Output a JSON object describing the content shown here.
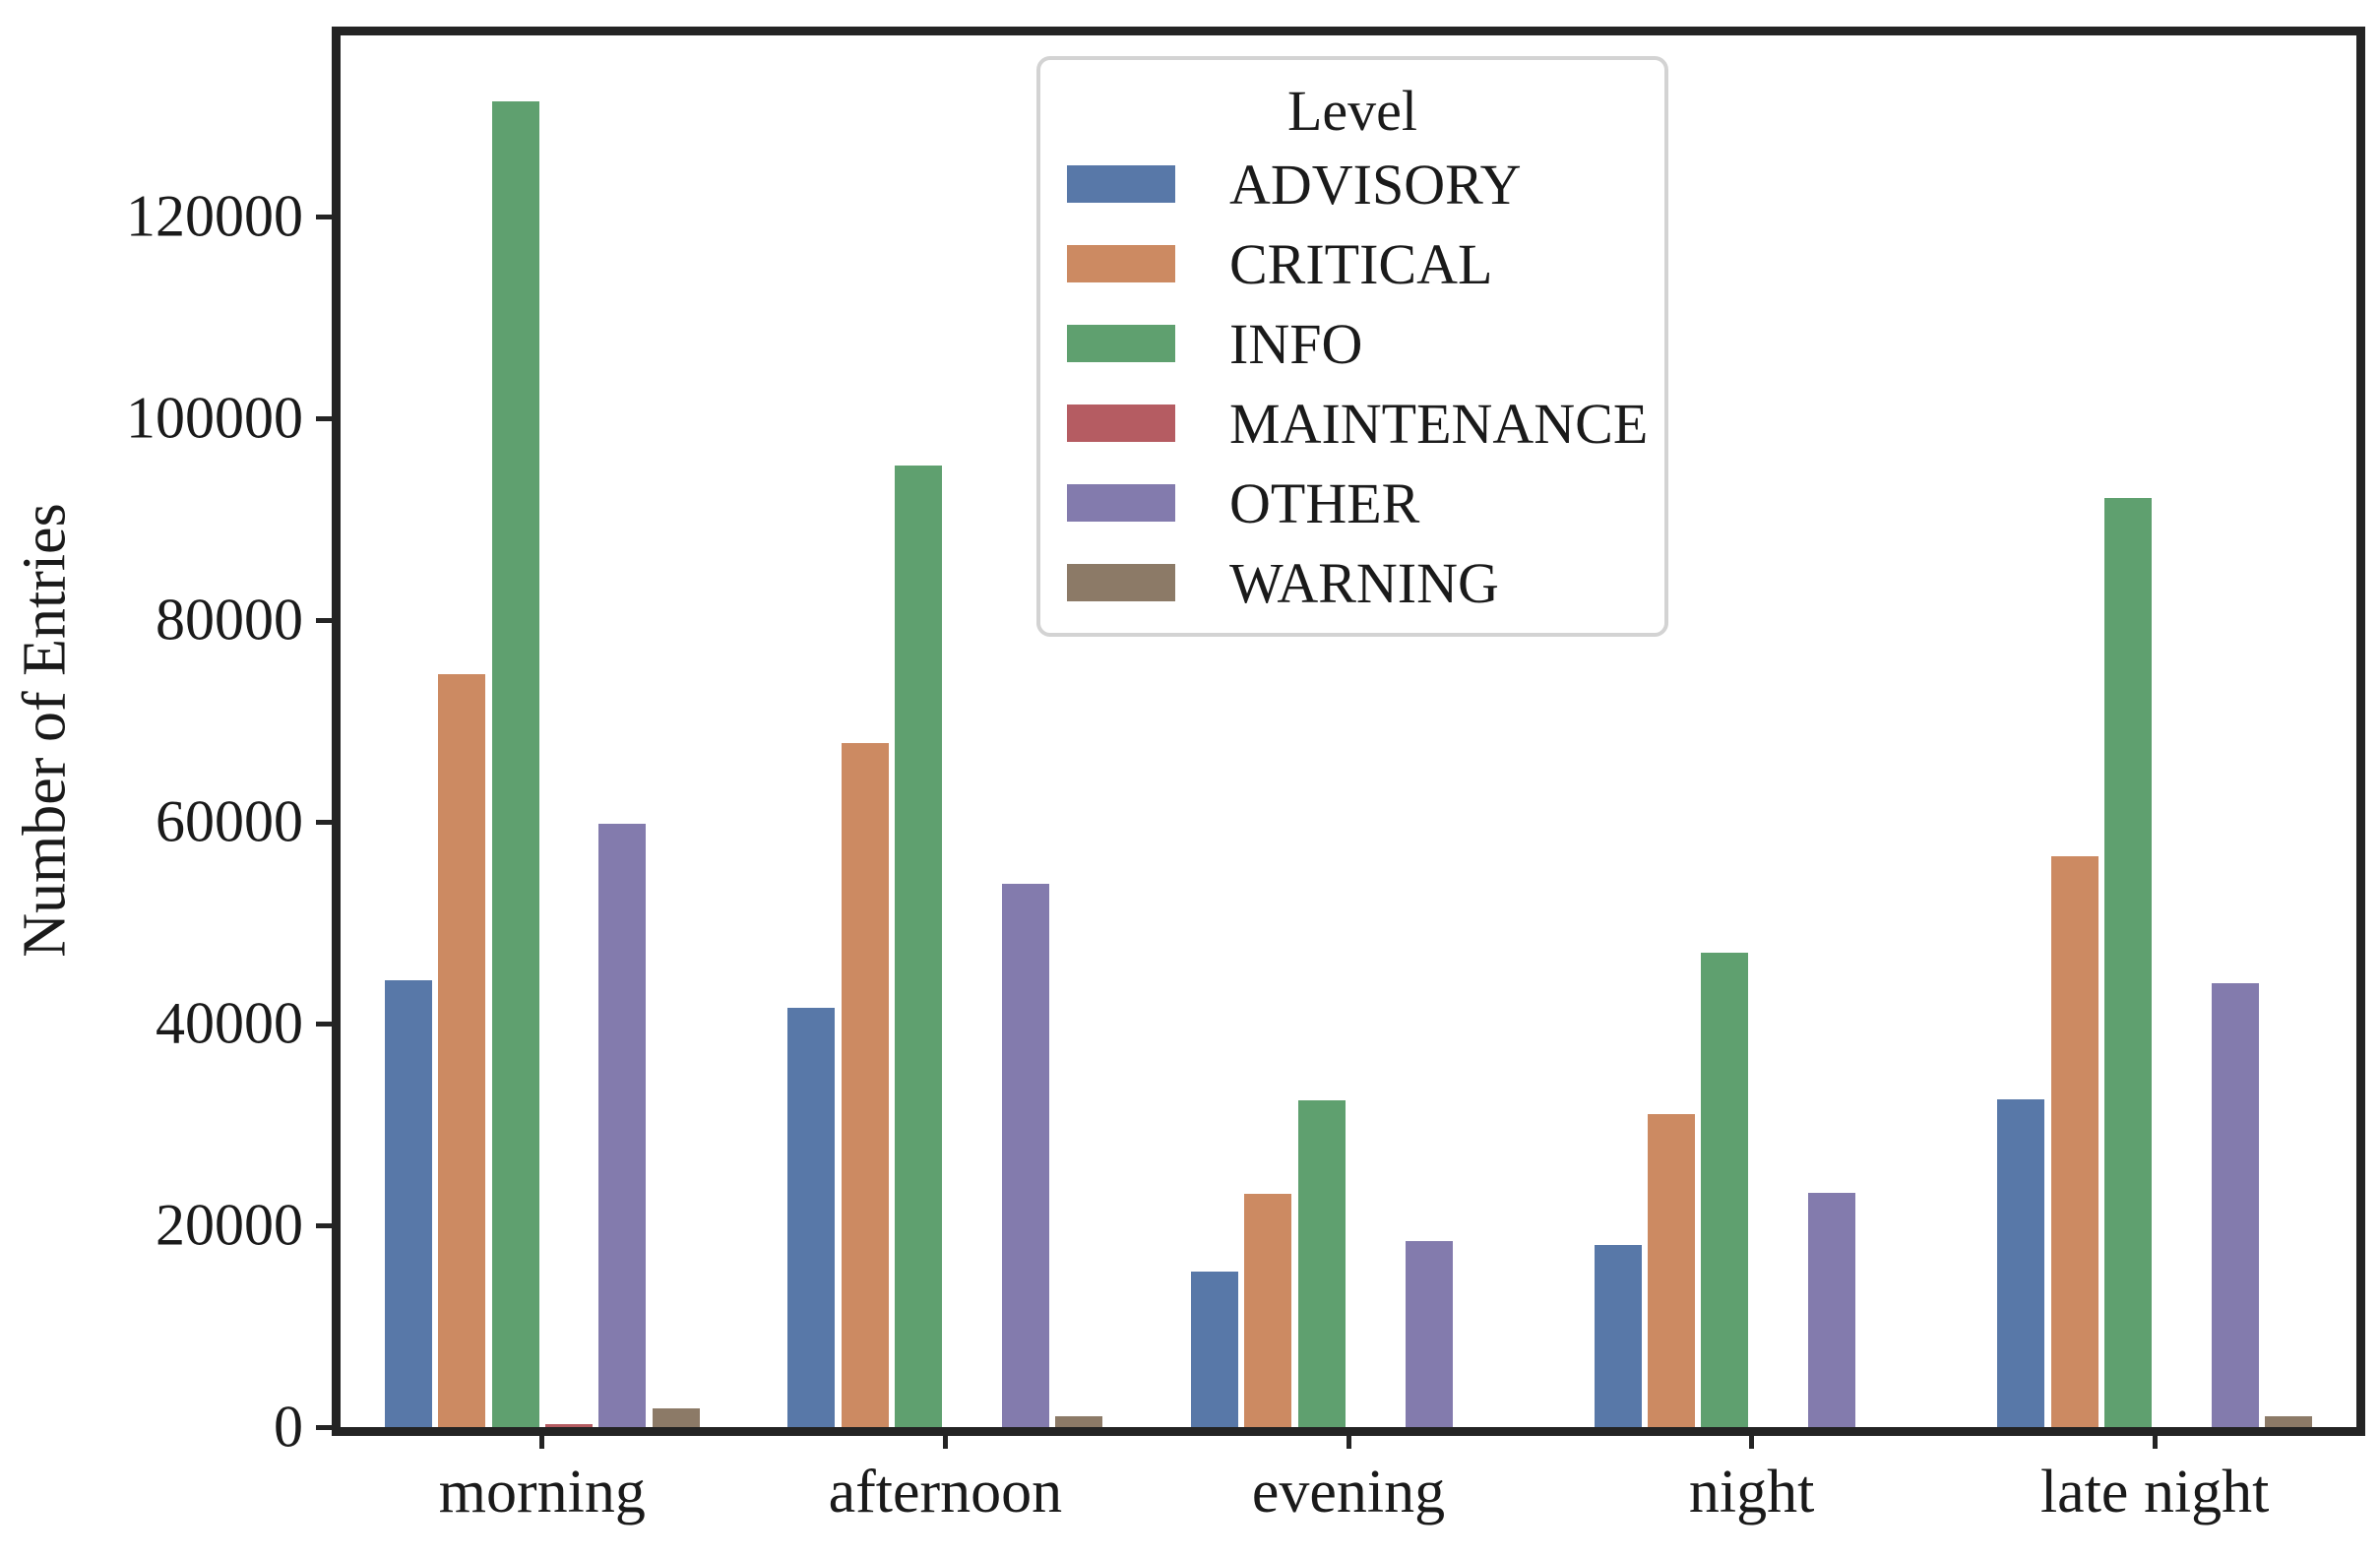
{
  "style": {
    "background": "#ffffff",
    "spine_color": "#242424",
    "text_color": "#1a1a1a",
    "legend_border_color": "#d3d3d3"
  },
  "chart_data": {
    "type": "bar",
    "title": "",
    "xlabel": "",
    "ylabel": "Number of Entries",
    "categories": [
      "morning",
      "afternoon",
      "evening",
      "night",
      "late night"
    ],
    "series": [
      {
        "name": "ADVISORY",
        "color": "#5878A8",
        "values": [
          44300,
          41600,
          15400,
          18100,
          32500
        ]
      },
      {
        "name": "CRITICAL",
        "color": "#CC8A62",
        "values": [
          74700,
          67800,
          23100,
          31000,
          56600
        ]
      },
      {
        "name": "INFO",
        "color": "#5FA06F",
        "values": [
          131500,
          95400,
          32400,
          47000,
          92100
        ]
      },
      {
        "name": "MAINTENANCE",
        "color": "#B55C62",
        "values": [
          300,
          0,
          0,
          0,
          0
        ]
      },
      {
        "name": "OTHER",
        "color": "#837BAD",
        "values": [
          59800,
          53900,
          18400,
          23200,
          44000
        ]
      },
      {
        "name": "WARNING",
        "color": "#8C7A67",
        "values": [
          1900,
          1100,
          0,
          0,
          1100
        ]
      }
    ],
    "yticks": [
      0,
      20000,
      40000,
      60000,
      80000,
      100000,
      120000
    ],
    "ylim": [
      0,
      138000
    ],
    "grid": false,
    "legend": {
      "title": "Level",
      "position": "upper center"
    }
  }
}
